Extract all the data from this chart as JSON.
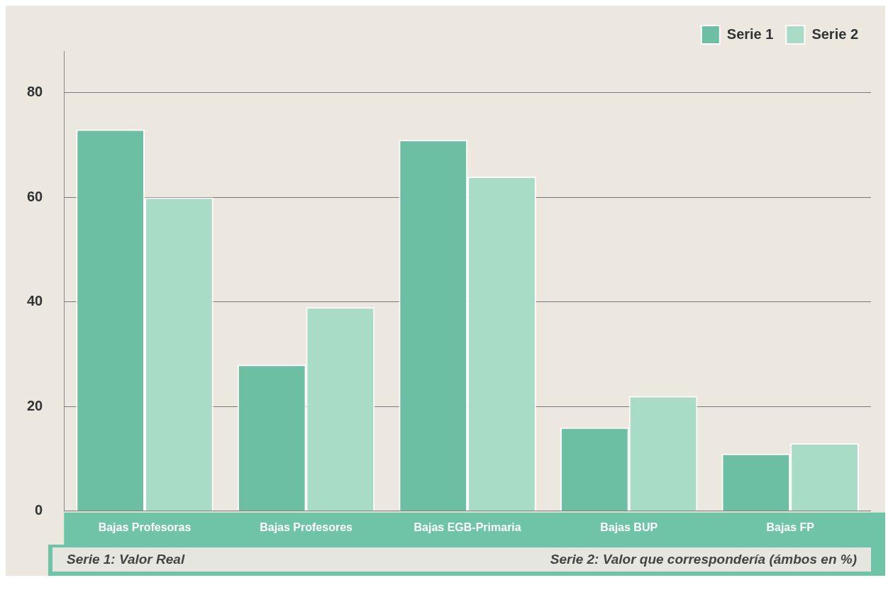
{
  "chart_data": {
    "type": "bar",
    "categories": [
      "Bajas Profesoras",
      "Bajas Profesores",
      "Bajas EGB-Primaria",
      "Bajas BUP",
      "Bajas FP"
    ],
    "series": [
      {
        "name": "Serie 1",
        "color": "#6dbfa3",
        "values": [
          73,
          28,
          71,
          16,
          11
        ]
      },
      {
        "name": "Serie 2",
        "color": "#a9dcc6",
        "values": [
          60,
          39,
          64,
          22,
          13
        ]
      }
    ],
    "ylim": [
      0,
      88
    ],
    "yticks": [
      0,
      20,
      40,
      60,
      80
    ],
    "grid": "y",
    "legend": "top right",
    "annotations": [
      "Serie 1: Valor Real",
      "Serie 2: Valor que correspondería (ámbos en %)"
    ]
  }
}
